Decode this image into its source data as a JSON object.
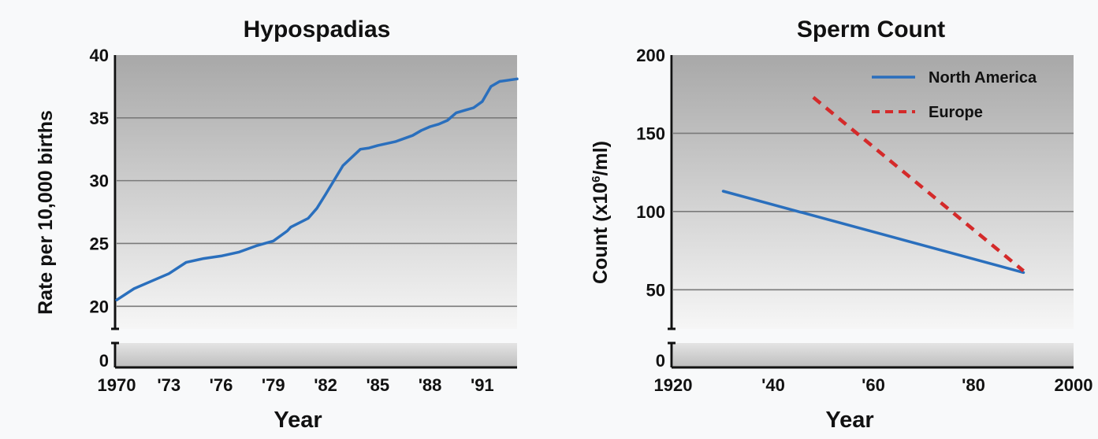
{
  "chart_data": [
    {
      "type": "line",
      "title": "Hypospadias",
      "xlabel": "Year",
      "ylabel": "Rate per 10,000 births",
      "y_axis_break": true,
      "yticks": [
        0,
        20,
        25,
        30,
        35,
        40
      ],
      "ytick_labels": [
        "0",
        "20",
        "25",
        "30",
        "35",
        "40"
      ],
      "xlim": [
        1970,
        1993
      ],
      "ylim_upper": [
        18.2,
        40
      ],
      "xticks": [
        1970,
        1973,
        1976,
        1979,
        1982,
        1985,
        1988,
        1991
      ],
      "xtick_labels": [
        "1970",
        "'73",
        "'76",
        "'79",
        "'82",
        "'85",
        "'88",
        "'91"
      ],
      "grid": true,
      "series": [
        {
          "color": "#2a6fbd",
          "style": "solid",
          "x": [
            1970,
            1971,
            1972,
            1973,
            1974,
            1975,
            1976,
            1977,
            1978,
            1979,
            1979.8,
            1980,
            1981,
            1981.5,
            1982,
            1983,
            1984,
            1984.5,
            1985,
            1986,
            1987,
            1987.5,
            1988,
            1988.5,
            1989,
            1989.5,
            1990,
            1990.5,
            1991,
            1991.5,
            1992,
            1993
          ],
          "y": [
            20.5,
            21.4,
            22.0,
            22.6,
            23.5,
            23.8,
            24.0,
            24.3,
            24.8,
            25.2,
            26.0,
            26.3,
            27.0,
            27.8,
            28.9,
            31.2,
            32.5,
            32.6,
            32.8,
            33.1,
            33.6,
            34.0,
            34.3,
            34.5,
            34.8,
            35.4,
            35.6,
            35.8,
            36.3,
            37.5,
            37.9,
            38.1
          ]
        }
      ]
    },
    {
      "type": "line",
      "title": "Sperm Count",
      "xlabel": "Year",
      "ylabel": "Count (x10",
      "ylabel_superscript": "6",
      "ylabel_suffix": "/ml)",
      "y_axis_break": true,
      "yticks": [
        0,
        50,
        100,
        150,
        200
      ],
      "ytick_labels": [
        "0",
        "50",
        "100",
        "150",
        "200"
      ],
      "xlim": [
        1920,
        2000
      ],
      "ylim_upper": [
        25,
        200
      ],
      "xticks": [
        1920,
        1940,
        1960,
        1980,
        2000
      ],
      "xtick_labels": [
        "1920",
        "'40",
        "'60",
        "'80",
        "2000"
      ],
      "grid": true,
      "legend": "top-right",
      "series": [
        {
          "name": "North America",
          "color": "#2a6fbd",
          "style": "solid",
          "x": [
            1930,
            1990
          ],
          "y": [
            113,
            61
          ]
        },
        {
          "name": "Europe",
          "color": "#d42a2a",
          "style": "dashed",
          "x": [
            1948,
            1990
          ],
          "y": [
            173,
            62
          ]
        }
      ]
    }
  ]
}
